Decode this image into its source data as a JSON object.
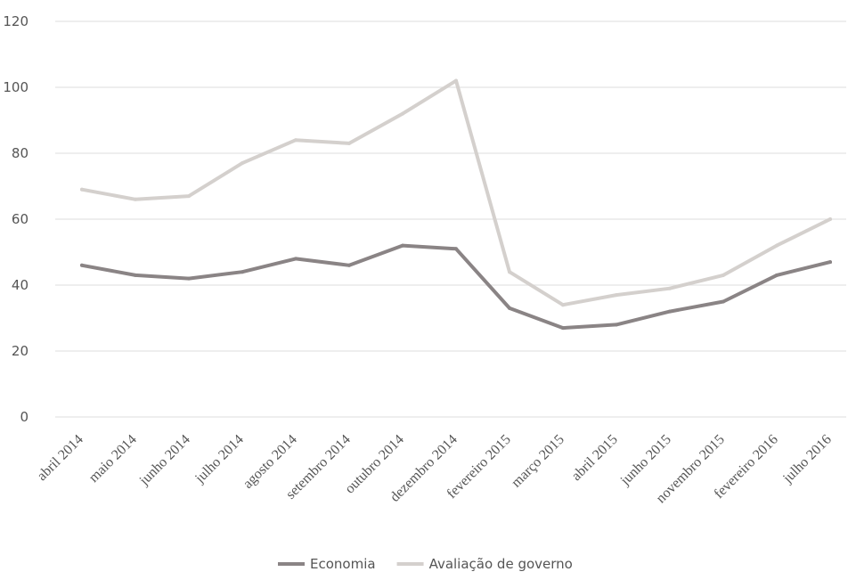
{
  "chart_data": {
    "type": "line",
    "categories": [
      "abril 2014",
      "maio 2014",
      "junho 2014",
      "julho 2014",
      "agosto 2014",
      "setembro 2014",
      "outubro 2014",
      "dezembro 2014",
      "fevereiro 2015",
      "março 2015",
      "abril 2015",
      "junho 2015",
      "novembro 2015",
      "fevereiro 2016",
      "julho 2016"
    ],
    "series": [
      {
        "name": "Economia",
        "color": "#8a8485",
        "values": [
          46,
          43,
          42,
          44,
          48,
          46,
          52,
          51,
          33,
          27,
          28,
          32,
          35,
          43,
          47
        ]
      },
      {
        "name": "Avaliação de governo",
        "color": "#d4d0cd",
        "values": [
          69,
          66,
          67,
          77,
          84,
          83,
          92,
          102,
          44,
          34,
          37,
          39,
          43,
          52,
          60
        ]
      }
    ],
    "y_ticks": [
      "0",
      "20",
      "40",
      "60",
      "80",
      "100",
      "120"
    ],
    "ylim": [
      0,
      120
    ],
    "grid": true,
    "legend_position": "bottom",
    "gridline_color": "#e4e4e4"
  }
}
